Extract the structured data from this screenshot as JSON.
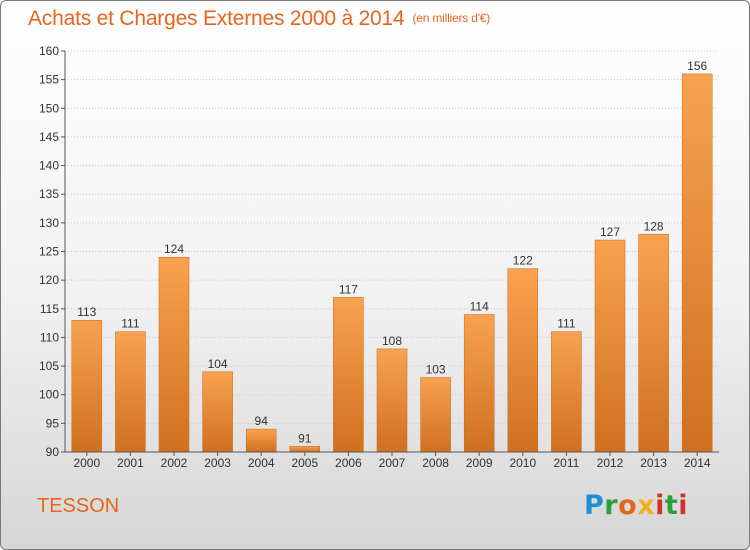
{
  "header": {
    "title": "Achats et Charges Externes 2000 à 2014",
    "subtitle": "(en milliers d'€)"
  },
  "footer": {
    "commune": "TESSON",
    "logo_letters": [
      "P",
      "r",
      "o",
      "x",
      "i",
      "t",
      "i"
    ]
  },
  "colors": {
    "accent": "#e8641b",
    "bar_light": "#f8a24f",
    "bar_dark": "#d0701f"
  },
  "chart_data": {
    "type": "bar",
    "title": "Achats et Charges Externes 2000 à 2014",
    "subtitle": "(en milliers d'€)",
    "xlabel": "",
    "ylabel": "",
    "categories": [
      "2000",
      "2001",
      "2002",
      "2003",
      "2004",
      "2005",
      "2006",
      "2007",
      "2008",
      "2009",
      "2010",
      "2011",
      "2012",
      "2013",
      "2014"
    ],
    "values": [
      113,
      111,
      124,
      104,
      94,
      91,
      117,
      108,
      103,
      114,
      122,
      111,
      127,
      128,
      156
    ],
    "ylim": [
      90,
      160
    ],
    "yticks": [
      90,
      95,
      100,
      105,
      110,
      115,
      120,
      125,
      130,
      135,
      140,
      145,
      150,
      155,
      160
    ],
    "grid": true
  }
}
